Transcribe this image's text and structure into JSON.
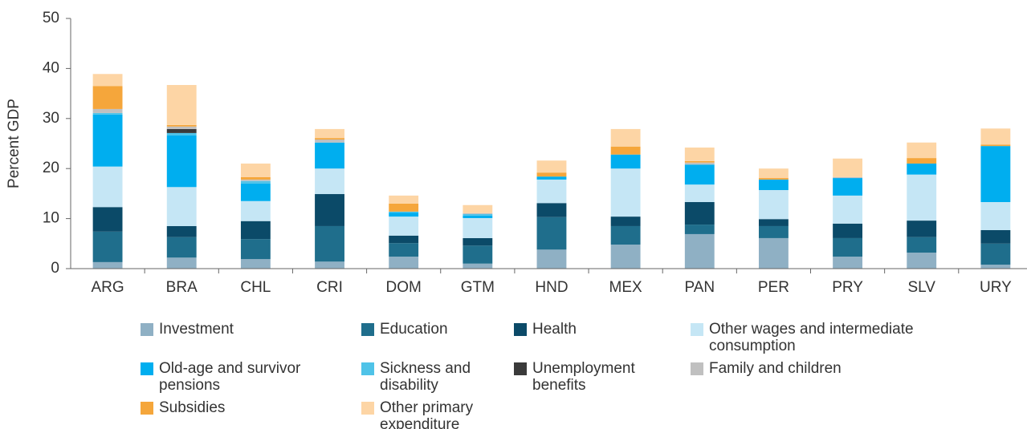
{
  "chart_data": {
    "type": "stacked_bar",
    "y_label": "Percent GDP",
    "categories": [
      "ARG",
      "BRA",
      "CHL",
      "CRI",
      "DOM",
      "GTM",
      "HND",
      "MEX",
      "PAN",
      "PER",
      "PRY",
      "SLV",
      "URY"
    ],
    "ylim": [
      0,
      50
    ],
    "yticks": [
      0,
      10,
      20,
      30,
      40,
      50
    ],
    "series": [
      {
        "name": "Investment",
        "color": "#8fb0c4",
        "values": [
          1.3,
          2.2,
          1.9,
          1.4,
          2.4,
          1.0,
          3.8,
          4.8,
          6.9,
          6.1,
          2.4,
          3.2,
          0.8
        ]
      },
      {
        "name": "Education",
        "color": "#1f6e8c",
        "values": [
          6.1,
          4.1,
          4.0,
          7.1,
          2.7,
          3.6,
          6.5,
          3.7,
          1.9,
          2.4,
          3.7,
          3.1,
          4.2
        ]
      },
      {
        "name": "Health",
        "color": "#0b4a68",
        "values": [
          4.9,
          2.2,
          3.6,
          6.4,
          1.5,
          1.5,
          2.8,
          1.9,
          4.5,
          1.4,
          2.9,
          3.3,
          2.7
        ]
      },
      {
        "name": "Other wages and intermediate consumption",
        "color": "#c5e6f5",
        "values": [
          8.1,
          7.8,
          4.0,
          5.1,
          3.8,
          4.0,
          4.7,
          9.6,
          3.5,
          5.8,
          5.6,
          9.2,
          5.6
        ]
      },
      {
        "name": "Old-age and survivor pensions",
        "color": "#00aeef",
        "values": [
          10.4,
          10.3,
          3.5,
          5.2,
          0.8,
          0.5,
          0.6,
          2.8,
          4.0,
          2.1,
          3.5,
          2.2,
          11.2
        ]
      },
      {
        "name": "Sickness and disability",
        "color": "#4fc3e8",
        "values": [
          0.3,
          0.5,
          0.5,
          0,
          0.2,
          0.3,
          0,
          0,
          0,
          0,
          0,
          0,
          0
        ]
      },
      {
        "name": "Unemployment benefits",
        "color": "#3a3a3a",
        "values": [
          0,
          0.8,
          0,
          0,
          0,
          0,
          0,
          0,
          0,
          0,
          0,
          0,
          0
        ]
      },
      {
        "name": "Family and children",
        "color": "#c0c0c0",
        "values": [
          0.8,
          0.5,
          0.3,
          0.6,
          0,
          0.2,
          0,
          0,
          0.4,
          0,
          0.2,
          0,
          0
        ]
      },
      {
        "name": "Subsidies",
        "color": "#f5a63b",
        "values": [
          4.6,
          0.3,
          0.5,
          0.3,
          1.6,
          0,
          0.8,
          1.6,
          0.3,
          0.3,
          0,
          1.1,
          0.3
        ]
      },
      {
        "name": "Other primary expenditure",
        "color": "#fdd5a5",
        "values": [
          2.4,
          8.0,
          2.7,
          1.8,
          1.6,
          1.6,
          2.4,
          3.5,
          2.7,
          1.9,
          3.7,
          3.1,
          3.2
        ]
      }
    ]
  }
}
